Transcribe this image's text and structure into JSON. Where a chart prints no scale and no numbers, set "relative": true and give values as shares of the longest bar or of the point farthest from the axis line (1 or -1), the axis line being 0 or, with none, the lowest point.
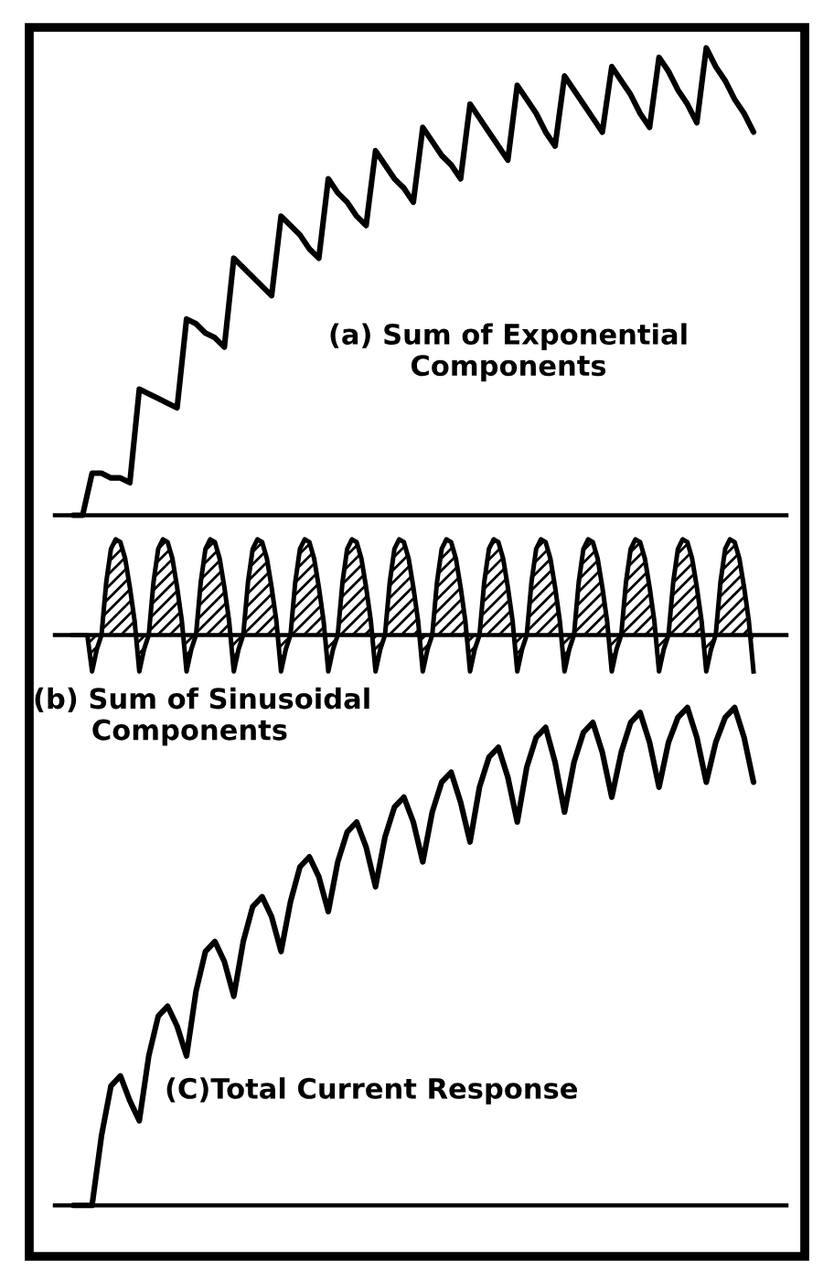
{
  "chart_data": [
    {
      "type": "line",
      "relative": true,
      "annotations": [
        "(a) Sum of Exponential\nComponents"
      ],
      "categories": [
        null,
        null,
        null,
        null,
        null,
        null,
        null,
        null,
        null,
        null,
        null,
        null,
        null,
        null,
        null,
        null,
        null,
        null,
        null,
        null,
        null,
        null,
        null,
        null,
        null,
        null,
        null,
        null,
        null,
        null,
        null,
        null,
        null,
        null,
        null,
        null,
        null,
        null,
        null,
        null,
        null,
        null,
        null,
        null,
        null,
        null,
        null,
        null,
        null,
        null,
        null,
        null,
        null,
        null,
        null,
        null,
        null,
        null,
        null,
        null,
        null,
        null,
        null,
        null,
        null,
        null,
        null,
        null,
        null,
        null,
        null,
        null,
        null
      ],
      "series": [
        {
          "color": "#000000",
          "values": [
            0,
            0,
            0.09,
            0.09,
            0.08,
            0.08,
            0.07,
            0.27,
            0.26,
            0.25,
            0.24,
            0.23,
            0.42,
            0.41,
            0.39,
            0.38,
            0.36,
            0.55,
            0.53,
            0.51,
            0.49,
            0.47,
            0.64,
            0.62,
            0.6,
            0.57,
            0.55,
            0.72,
            0.69,
            0.67,
            0.64,
            0.62,
            0.78,
            0.75,
            0.72,
            0.7,
            0.67,
            0.83,
            0.8,
            0.77,
            0.75,
            0.72,
            0.88,
            0.85,
            0.82,
            0.79,
            0.76,
            0.92,
            0.89,
            0.86,
            0.82,
            0.79,
            0.94,
            0.91,
            0.88,
            0.85,
            0.82,
            0.96,
            0.93,
            0.9,
            0.86,
            0.83,
            0.98,
            0.95,
            0.91,
            0.88,
            0.84,
            1,
            0.96,
            0.93,
            0.89,
            0.86,
            0.82
          ]
        }
      ]
    },
    {
      "type": "area",
      "relative": true,
      "annotations": [
        "(b) Sum of Sinusoidal\n      Components"
      ],
      "categories": [
        null,
        null,
        null,
        null,
        null,
        null,
        null,
        null,
        null,
        null,
        null,
        null,
        null,
        null,
        null,
        null,
        null,
        null,
        null,
        null,
        null,
        null,
        null,
        null,
        null,
        null,
        null,
        null,
        null,
        null,
        null,
        null,
        null,
        null,
        null,
        null,
        null,
        null,
        null,
        null,
        null,
        null,
        null,
        null,
        null,
        null,
        null,
        null,
        null,
        null,
        null,
        null,
        null,
        null,
        null,
        null,
        null,
        null,
        null,
        null,
        null,
        null,
        null,
        null,
        null,
        null,
        null,
        null,
        null,
        null,
        null,
        null,
        null,
        null,
        null,
        null,
        null,
        null,
        null,
        null,
        null,
        null,
        null,
        null,
        null,
        null,
        null,
        null,
        null,
        null,
        null,
        null,
        null,
        null,
        null,
        null,
        null,
        null,
        null,
        null,
        null,
        null,
        null,
        null,
        null,
        null,
        null,
        null,
        null,
        null,
        null,
        null,
        null,
        null,
        null,
        null,
        null,
        null,
        null,
        null,
        null,
        null,
        null,
        null,
        null,
        null,
        null,
        null,
        null,
        null,
        null,
        null,
        null,
        null,
        null,
        null,
        null,
        null,
        null,
        null,
        null,
        null,
        null,
        null,
        null
      ],
      "series": [
        {
          "color": "#000000",
          "values": [
            0,
            0,
            0,
            0,
            -0.38,
            -0.15,
            0,
            0.55,
            0.9,
            1,
            0.97,
            0.8,
            0.5,
            0.15,
            -0.38,
            -0.15,
            0,
            0.55,
            0.9,
            1,
            0.97,
            0.8,
            0.5,
            0.15,
            -0.38,
            -0.15,
            0,
            0.55,
            0.9,
            1,
            0.97,
            0.8,
            0.5,
            0.15,
            -0.38,
            -0.15,
            0,
            0.55,
            0.9,
            1,
            0.97,
            0.8,
            0.5,
            0.15,
            -0.38,
            -0.15,
            0,
            0.55,
            0.9,
            1,
            0.97,
            0.8,
            0.5,
            0.15,
            -0.38,
            -0.15,
            0,
            0.55,
            0.9,
            1,
            0.97,
            0.8,
            0.5,
            0.15,
            -0.38,
            -0.15,
            0,
            0.55,
            0.9,
            1,
            0.97,
            0.8,
            0.5,
            0.15,
            -0.38,
            -0.15,
            0,
            0.55,
            0.9,
            1,
            0.97,
            0.8,
            0.5,
            0.15,
            -0.38,
            -0.15,
            0,
            0.55,
            0.9,
            1,
            0.97,
            0.8,
            0.5,
            0.15,
            -0.38,
            -0.15,
            0,
            0.55,
            0.9,
            1,
            0.97,
            0.8,
            0.5,
            0.15,
            -0.38,
            -0.15,
            0,
            0.55,
            0.9,
            1,
            0.97,
            0.8,
            0.5,
            0.15,
            -0.38,
            -0.15,
            0,
            0.55,
            0.9,
            1,
            0.97,
            0.8,
            0.5,
            0.15,
            -0.38,
            -0.15,
            0,
            0.55,
            0.9,
            1,
            0.97,
            0.8,
            0.5,
            0.15,
            -0.38,
            -0.15,
            0,
            0.55,
            0.9,
            1,
            0.97,
            0.8,
            0.5,
            0.15,
            -0.38
          ]
        }
      ]
    },
    {
      "type": "line",
      "relative": true,
      "annotations": [
        "(C)Total Current Response"
      ],
      "categories": [
        null,
        null,
        null,
        null,
        null,
        null,
        null,
        null,
        null,
        null,
        null,
        null,
        null,
        null,
        null,
        null,
        null,
        null,
        null,
        null,
        null,
        null,
        null,
        null,
        null,
        null,
        null,
        null,
        null,
        null,
        null,
        null,
        null,
        null,
        null,
        null,
        null,
        null,
        null,
        null,
        null,
        null,
        null,
        null,
        null,
        null,
        null,
        null,
        null,
        null,
        null,
        null,
        null,
        null,
        null,
        null,
        null,
        null,
        null,
        null,
        null,
        null,
        null,
        null,
        null,
        null,
        null,
        null,
        null,
        null,
        null,
        null,
        null
      ],
      "series": [
        {
          "color": "#000000",
          "values": [
            0,
            0,
            0,
            0.14,
            0.24,
            0.26,
            0.21,
            0.17,
            0.3,
            0.38,
            0.4,
            0.36,
            0.3,
            0.43,
            0.51,
            0.53,
            0.49,
            0.42,
            0.53,
            0.6,
            0.62,
            0.58,
            0.51,
            0.61,
            0.68,
            0.7,
            0.66,
            0.59,
            0.69,
            0.75,
            0.77,
            0.72,
            0.64,
            0.74,
            0.8,
            0.82,
            0.77,
            0.69,
            0.79,
            0.85,
            0.87,
            0.81,
            0.73,
            0.84,
            0.9,
            0.92,
            0.86,
            0.77,
            0.88,
            0.94,
            0.96,
            0.89,
            0.79,
            0.89,
            0.95,
            0.97,
            0.91,
            0.82,
            0.91,
            0.97,
            0.99,
            0.93,
            0.84,
            0.93,
            0.98,
            1,
            0.94,
            0.85,
            0.93,
            0.98,
            1,
            0.94,
            0.85
          ]
        }
      ]
    }
  ]
}
